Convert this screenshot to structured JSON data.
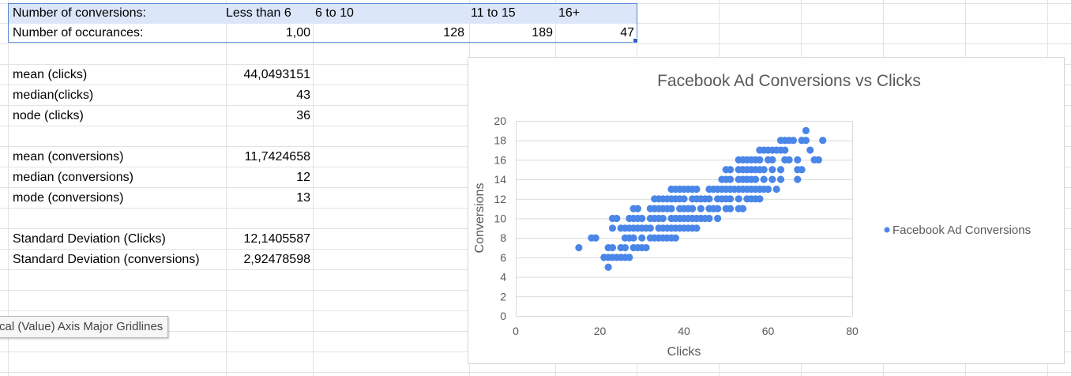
{
  "sheet": {
    "row1": {
      "label": "Number of conversions:",
      "c1": "Less than 6",
      "c2": "6 to 10",
      "c3": "11 to 15",
      "c4": "16+"
    },
    "row2": {
      "label": "Number of occurances:",
      "c1": "1,00",
      "c2": "128",
      "c3": "189",
      "c4": "47"
    },
    "stats": [
      {
        "label": "mean (clicks)",
        "value": "44,0493151"
      },
      {
        "label": "median(clicks)",
        "value": "43"
      },
      {
        "label": "node (clicks)",
        "value": "36"
      },
      {
        "label": "mean (conversions)",
        "value": "11,7424658"
      },
      {
        "label": "median  (conversions)",
        "value": "12"
      },
      {
        "label": "mode  (conversions)",
        "value": "13"
      },
      {
        "label": "Standard Deviation (Clicks)",
        "value": "12,1405587"
      },
      {
        "label": "Standard Deviation (conversions)",
        "value": "2,92478598"
      }
    ],
    "selection_color": "#dbe6f9"
  },
  "tooltip": {
    "text": "cal (Value) Axis Major Gridlines"
  },
  "chart_data": {
    "type": "scatter",
    "title": "Facebook Ad Conversions vs Clicks",
    "xlabel": "Clicks",
    "ylabel": "Conversions",
    "xlim": [
      0,
      80
    ],
    "ylim": [
      0,
      20
    ],
    "x_ticks": [
      "0",
      "20",
      "40",
      "60",
      "80"
    ],
    "y_ticks": [
      "0",
      "2",
      "4",
      "6",
      "8",
      "10",
      "12",
      "14",
      "16",
      "18",
      "20"
    ],
    "grid": "horizontal",
    "legend_position": "right",
    "marker_color": "#4a86e8",
    "series": [
      {
        "name": "Facebook Ad Conversions",
        "points": [
          [
            15,
            7
          ],
          [
            18,
            8
          ],
          [
            19,
            8
          ],
          [
            21,
            6
          ],
          [
            22,
            6
          ],
          [
            23,
            6
          ],
          [
            24,
            6
          ],
          [
            25,
            6
          ],
          [
            26,
            6
          ],
          [
            27,
            6
          ],
          [
            22,
            5
          ],
          [
            22,
            7
          ],
          [
            23,
            7
          ],
          [
            25,
            7
          ],
          [
            26,
            7
          ],
          [
            28,
            7
          ],
          [
            29,
            7
          ],
          [
            30,
            7
          ],
          [
            31,
            7
          ],
          [
            26,
            8
          ],
          [
            27,
            8
          ],
          [
            28,
            8
          ],
          [
            30,
            8
          ],
          [
            32,
            8
          ],
          [
            33,
            8
          ],
          [
            34,
            8
          ],
          [
            35,
            8
          ],
          [
            36,
            8
          ],
          [
            37,
            8
          ],
          [
            38,
            8
          ],
          [
            23,
            9
          ],
          [
            25,
            9
          ],
          [
            26,
            9
          ],
          [
            27,
            9
          ],
          [
            28,
            9
          ],
          [
            29,
            9
          ],
          [
            30,
            9
          ],
          [
            31,
            9
          ],
          [
            32,
            9
          ],
          [
            34,
            9
          ],
          [
            35,
            9
          ],
          [
            36,
            9
          ],
          [
            37,
            9
          ],
          [
            38,
            9
          ],
          [
            39,
            9
          ],
          [
            40,
            9
          ],
          [
            41,
            9
          ],
          [
            42,
            9
          ],
          [
            43,
            9
          ],
          [
            23,
            10
          ],
          [
            24,
            10
          ],
          [
            27,
            10
          ],
          [
            28,
            10
          ],
          [
            29,
            10
          ],
          [
            30,
            10
          ],
          [
            32,
            10
          ],
          [
            33,
            10
          ],
          [
            34,
            10
          ],
          [
            35,
            10
          ],
          [
            37,
            10
          ],
          [
            38,
            10
          ],
          [
            39,
            10
          ],
          [
            40,
            10
          ],
          [
            41,
            10
          ],
          [
            42,
            10
          ],
          [
            43,
            10
          ],
          [
            44,
            10
          ],
          [
            45,
            10
          ],
          [
            46,
            10
          ],
          [
            48,
            10
          ],
          [
            28,
            11
          ],
          [
            29,
            11
          ],
          [
            32,
            11
          ],
          [
            33,
            11
          ],
          [
            34,
            11
          ],
          [
            35,
            11
          ],
          [
            36,
            11
          ],
          [
            37,
            11
          ],
          [
            39,
            11
          ],
          [
            40,
            11
          ],
          [
            41,
            11
          ],
          [
            42,
            11
          ],
          [
            44,
            11
          ],
          [
            46,
            11
          ],
          [
            47,
            11
          ],
          [
            48,
            11
          ],
          [
            50,
            11
          ],
          [
            51,
            11
          ],
          [
            53,
            11
          ],
          [
            54,
            11
          ],
          [
            33,
            12
          ],
          [
            34,
            12
          ],
          [
            35,
            12
          ],
          [
            36,
            12
          ],
          [
            37,
            12
          ],
          [
            38,
            12
          ],
          [
            39,
            12
          ],
          [
            40,
            12
          ],
          [
            42,
            12
          ],
          [
            43,
            12
          ],
          [
            44,
            12
          ],
          [
            45,
            12
          ],
          [
            46,
            12
          ],
          [
            48,
            12
          ],
          [
            49,
            12
          ],
          [
            50,
            12
          ],
          [
            51,
            12
          ],
          [
            53,
            12
          ],
          [
            55,
            12
          ],
          [
            56,
            12
          ],
          [
            57,
            12
          ],
          [
            58,
            12
          ],
          [
            37,
            13
          ],
          [
            38,
            13
          ],
          [
            39,
            13
          ],
          [
            40,
            13
          ],
          [
            41,
            13
          ],
          [
            42,
            13
          ],
          [
            43,
            13
          ],
          [
            46,
            13
          ],
          [
            47,
            13
          ],
          [
            48,
            13
          ],
          [
            49,
            13
          ],
          [
            50,
            13
          ],
          [
            51,
            13
          ],
          [
            52,
            13
          ],
          [
            53,
            13
          ],
          [
            54,
            13
          ],
          [
            55,
            13
          ],
          [
            56,
            13
          ],
          [
            57,
            13
          ],
          [
            58,
            13
          ],
          [
            59,
            13
          ],
          [
            60,
            13
          ],
          [
            62,
            13
          ],
          [
            49,
            14
          ],
          [
            50,
            14
          ],
          [
            51,
            14
          ],
          [
            53,
            14
          ],
          [
            54,
            14
          ],
          [
            55,
            14
          ],
          [
            56,
            14
          ],
          [
            57,
            14
          ],
          [
            59,
            14
          ],
          [
            61,
            14
          ],
          [
            63,
            14
          ],
          [
            67,
            14
          ],
          [
            50,
            15
          ],
          [
            51,
            15
          ],
          [
            53,
            15
          ],
          [
            54,
            15
          ],
          [
            55,
            15
          ],
          [
            56,
            15
          ],
          [
            57,
            15
          ],
          [
            58,
            15
          ],
          [
            59,
            15
          ],
          [
            61,
            15
          ],
          [
            63,
            15
          ],
          [
            67,
            15
          ],
          [
            68,
            15
          ],
          [
            53,
            16
          ],
          [
            54,
            16
          ],
          [
            55,
            16
          ],
          [
            56,
            16
          ],
          [
            57,
            16
          ],
          [
            58,
            16
          ],
          [
            60,
            16
          ],
          [
            61,
            16
          ],
          [
            64,
            16
          ],
          [
            65,
            16
          ],
          [
            67,
            16
          ],
          [
            71,
            16
          ],
          [
            72,
            16
          ],
          [
            58,
            17
          ],
          [
            59,
            17
          ],
          [
            60,
            17
          ],
          [
            61,
            17
          ],
          [
            62,
            17
          ],
          [
            63,
            17
          ],
          [
            64,
            17
          ],
          [
            70,
            17
          ],
          [
            63,
            18
          ],
          [
            64,
            18
          ],
          [
            65,
            18
          ],
          [
            66,
            18
          ],
          [
            68,
            18
          ],
          [
            69,
            18
          ],
          [
            73,
            18
          ],
          [
            69,
            19
          ]
        ]
      }
    ]
  }
}
